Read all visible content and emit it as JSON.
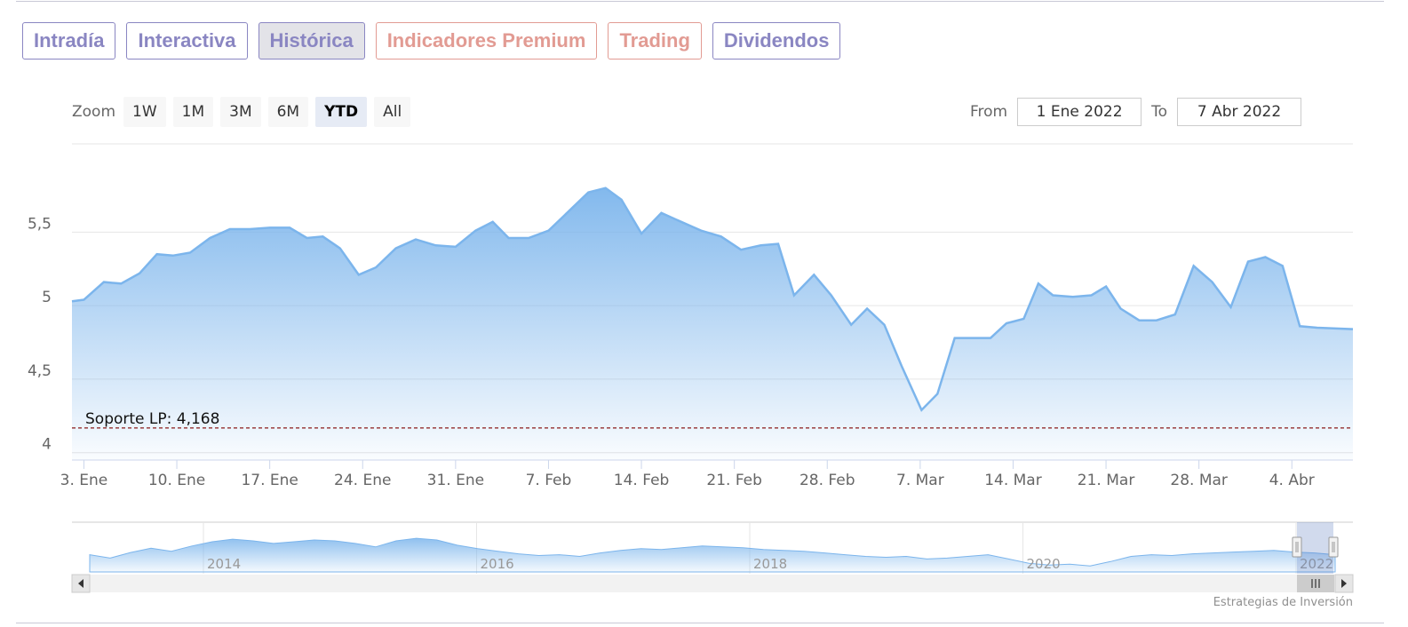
{
  "tabs": [
    {
      "label": "Intradía",
      "style": "purple",
      "active": false
    },
    {
      "label": "Interactiva",
      "style": "purple",
      "active": false
    },
    {
      "label": "Histórica",
      "style": "purple",
      "active": true
    },
    {
      "label": "Indicadores Premium",
      "style": "red",
      "active": false
    },
    {
      "label": "Trading",
      "style": "red",
      "active": false
    },
    {
      "label": "Dividendos",
      "style": "purple",
      "active": false
    }
  ],
  "zoom": {
    "label": "Zoom",
    "buttons": [
      "1W",
      "1M",
      "3M",
      "6M",
      "YTD",
      "All"
    ],
    "selected": "YTD"
  },
  "range": {
    "from_label": "From",
    "from_value": "1 Ene 2022",
    "to_label": "To",
    "to_value": "7 Abr 2022"
  },
  "credit": "Estrategias de Inversión",
  "colors": {
    "series": "#7cb5ec",
    "support": "#8b1a1a",
    "grid": "#e6e6e6",
    "tab_purple": "#8a86c2",
    "tab_red": "#e29b93"
  },
  "chart_data": {
    "type": "area",
    "title": "",
    "xlabel": "",
    "ylabel": "",
    "ylim": [
      3.95,
      6.1
    ],
    "yticks": [
      {
        "value": 4,
        "label": "4"
      },
      {
        "value": 4.5,
        "label": "4,5"
      },
      {
        "value": 5,
        "label": "5"
      },
      {
        "value": 5.5,
        "label": "5,5"
      }
    ],
    "xlim": [
      0.1,
      96.6
    ],
    "xticks": [
      {
        "x": 1,
        "label": "3. Ene"
      },
      {
        "x": 8,
        "label": "10. Ene"
      },
      {
        "x": 15,
        "label": "17. Ene"
      },
      {
        "x": 22,
        "label": "24. Ene"
      },
      {
        "x": 29,
        "label": "31. Ene"
      },
      {
        "x": 36,
        "label": "7. Feb"
      },
      {
        "x": 43,
        "label": "14. Feb"
      },
      {
        "x": 50,
        "label": "21. Feb"
      },
      {
        "x": 57,
        "label": "28. Feb"
      },
      {
        "x": 64,
        "label": "7. Mar"
      },
      {
        "x": 71,
        "label": "14. Mar"
      },
      {
        "x": 78,
        "label": "21. Mar"
      },
      {
        "x": 85,
        "label": "28. Mar"
      },
      {
        "x": 92,
        "label": "4. Abr"
      }
    ],
    "grid": true,
    "series": [
      {
        "points": [
          [
            0.1,
            5.03
          ],
          [
            1,
            5.04
          ],
          [
            2.5,
            5.16
          ],
          [
            3.8,
            5.15
          ],
          [
            5.2,
            5.22
          ],
          [
            6.5,
            5.35
          ],
          [
            7.7,
            5.34
          ],
          [
            9,
            5.36
          ],
          [
            10.5,
            5.46
          ],
          [
            12,
            5.52
          ],
          [
            13.5,
            5.52
          ],
          [
            15,
            5.53
          ],
          [
            16.5,
            5.53
          ],
          [
            17.8,
            5.46
          ],
          [
            19,
            5.47
          ],
          [
            20.3,
            5.39
          ],
          [
            21.7,
            5.21
          ],
          [
            23,
            5.26
          ],
          [
            24.5,
            5.39
          ],
          [
            26,
            5.45
          ],
          [
            27.5,
            5.41
          ],
          [
            29,
            5.4
          ],
          [
            30.5,
            5.51
          ],
          [
            31.8,
            5.57
          ],
          [
            33,
            5.46
          ],
          [
            34.5,
            5.46
          ],
          [
            36,
            5.51
          ],
          [
            37.5,
            5.64
          ],
          [
            39,
            5.77
          ],
          [
            40.3,
            5.8
          ],
          [
            41.5,
            5.72
          ],
          [
            43,
            5.49
          ],
          [
            44.5,
            5.63
          ],
          [
            46,
            5.57
          ],
          [
            47.5,
            5.51
          ],
          [
            49,
            5.47
          ],
          [
            50.5,
            5.38
          ],
          [
            52,
            5.41
          ],
          [
            53.3,
            5.42
          ],
          [
            54.5,
            5.07
          ],
          [
            56,
            5.21
          ],
          [
            57.3,
            5.07
          ],
          [
            58.8,
            4.87
          ],
          [
            60,
            4.98
          ],
          [
            61.3,
            4.87
          ],
          [
            62.6,
            4.59
          ],
          [
            64.1,
            4.29
          ],
          [
            65.3,
            4.4
          ],
          [
            66.6,
            4.78
          ],
          [
            68,
            4.78
          ],
          [
            69.3,
            4.78
          ],
          [
            70.5,
            4.88
          ],
          [
            71.8,
            4.91
          ],
          [
            72.9,
            5.15
          ],
          [
            74,
            5.07
          ],
          [
            75.5,
            5.06
          ],
          [
            76.9,
            5.07
          ],
          [
            78,
            5.13
          ],
          [
            79.1,
            4.98
          ],
          [
            80.5,
            4.9
          ],
          [
            81.8,
            4.9
          ],
          [
            83.2,
            4.94
          ],
          [
            84.6,
            5.27
          ],
          [
            86,
            5.16
          ],
          [
            87.4,
            4.99
          ],
          [
            88.7,
            5.3
          ],
          [
            90,
            5.33
          ],
          [
            91.3,
            5.27
          ],
          [
            92.6,
            4.86
          ],
          [
            93.9,
            4.85
          ],
          [
            96.6,
            4.84
          ]
        ]
      }
    ],
    "annotations": [
      {
        "type": "horizontal-line",
        "value": 4.168,
        "label": "Soporte LP: 4,168",
        "style": "dashed"
      }
    ],
    "navigator": {
      "x_labels": [
        "2014",
        "2016",
        "2018",
        "2020",
        "2022"
      ],
      "series": [
        0.4,
        0.32,
        0.45,
        0.55,
        0.48,
        0.6,
        0.7,
        0.76,
        0.72,
        0.66,
        0.7,
        0.74,
        0.72,
        0.66,
        0.58,
        0.72,
        0.78,
        0.74,
        0.62,
        0.54,
        0.48,
        0.42,
        0.38,
        0.4,
        0.36,
        0.44,
        0.5,
        0.54,
        0.52,
        0.56,
        0.6,
        0.58,
        0.56,
        0.52,
        0.5,
        0.48,
        0.44,
        0.4,
        0.36,
        0.34,
        0.36,
        0.3,
        0.32,
        0.36,
        0.4,
        0.3,
        0.2,
        0.16,
        0.18,
        0.14,
        0.24,
        0.36,
        0.4,
        0.38,
        0.42,
        0.44,
        0.46,
        0.48,
        0.5,
        0.46,
        0.44,
        0.4
      ]
    }
  }
}
